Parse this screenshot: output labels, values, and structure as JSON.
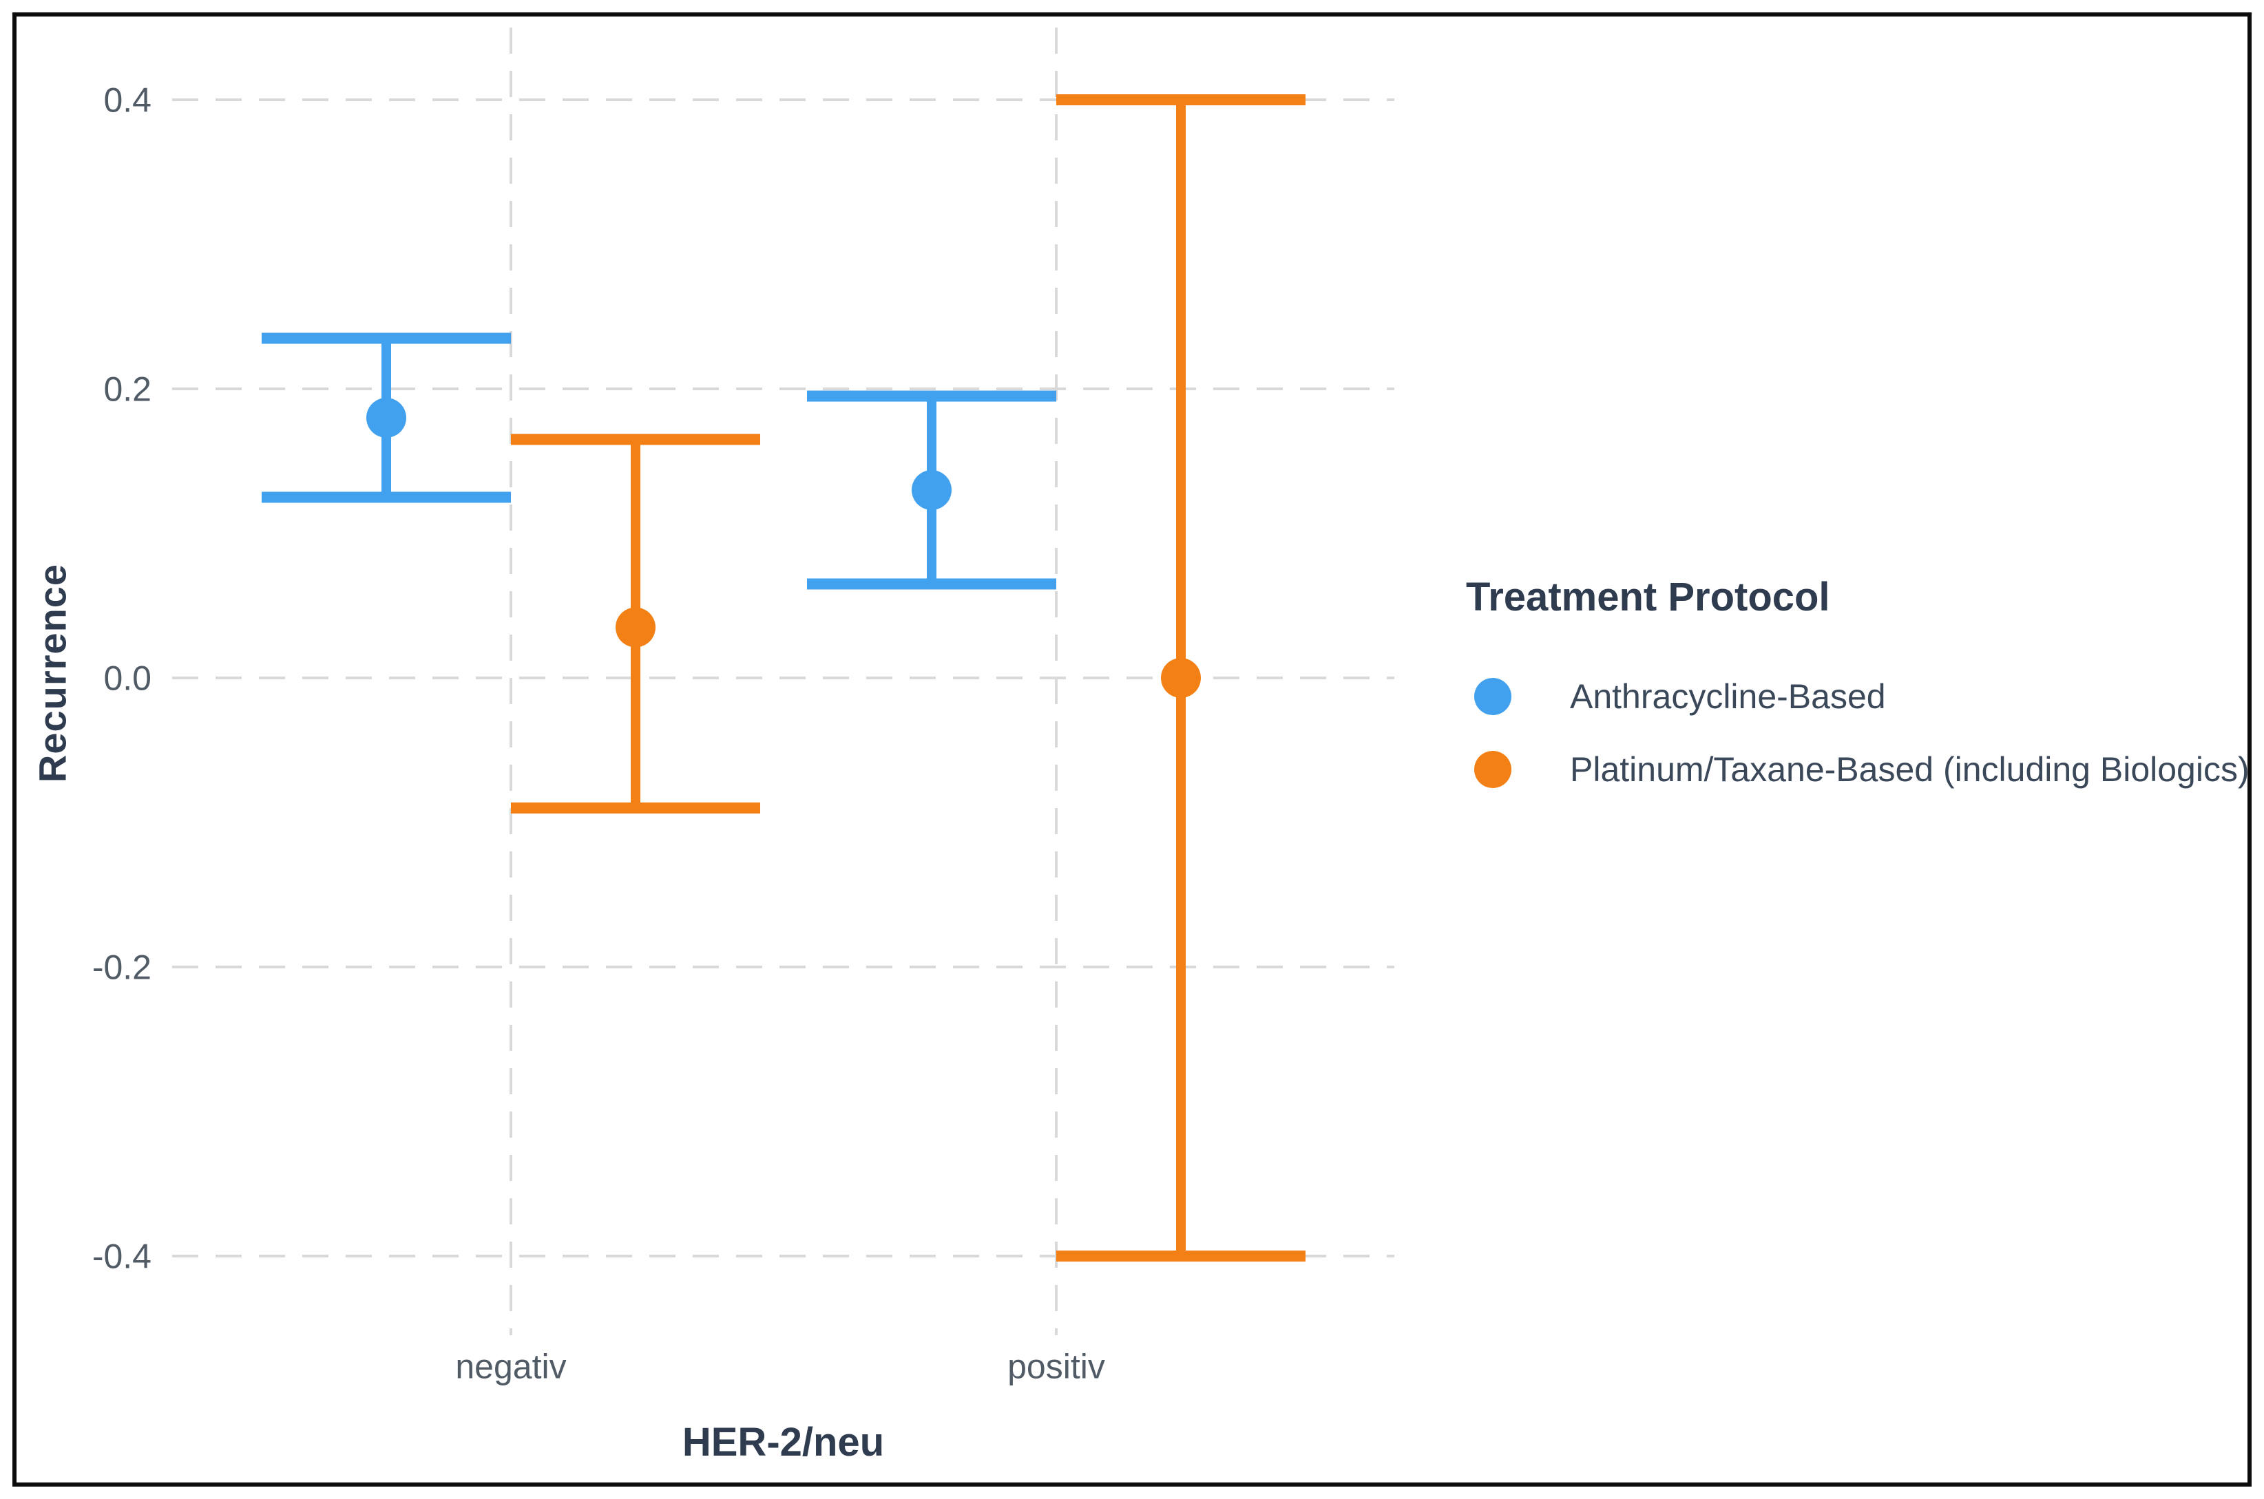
{
  "axes": {
    "y_title": "Recurrence",
    "x_title": "HER-2/neu"
  },
  "legend": {
    "title": "Treatment Protocol",
    "items": [
      {
        "label": "Anthracycline-Based",
        "color": "#41a1ee"
      },
      {
        "label": "Platinum/Taxane-Based (including Biologics)",
        "color": "#f28014"
      }
    ]
  },
  "chart_data": {
    "type": "scatter",
    "subtype": "dodged-point-with-error-bars",
    "title": "",
    "xlabel": "HER-2/neu",
    "ylabel": "Recurrence",
    "categories": [
      "negativ",
      "positiv"
    ],
    "series": [
      {
        "name": "Anthracycline-Based",
        "color": "#41a1ee",
        "points": [
          {
            "category": "negativ",
            "mean": 0.18,
            "ci_low": 0.125,
            "ci_high": 0.235
          },
          {
            "category": "positiv",
            "mean": 0.13,
            "ci_low": 0.065,
            "ci_high": 0.195
          }
        ]
      },
      {
        "name": "Platinum/Taxane-Based (including Biologics)",
        "color": "#f28014",
        "points": [
          {
            "category": "negativ",
            "mean": 0.035,
            "ci_low": -0.09,
            "ci_high": 0.165
          },
          {
            "category": "positiv",
            "mean": 0.0,
            "ci_low": -0.4,
            "ci_high": 0.4
          }
        ]
      }
    ],
    "y_ticks": [
      0.4,
      0.2,
      0.0,
      -0.2,
      -0.4
    ],
    "ylim": [
      -0.45,
      0.45
    ],
    "grid": {
      "style": "dashed",
      "color": "#d9d9d9",
      "horizontal": true,
      "vertical": true
    },
    "legend_position": "right",
    "legend_title": "Treatment Protocol",
    "error_bars": "confidence-interval",
    "tick_label_color": "#505b66",
    "axis_title_color": "#2f3c50"
  }
}
